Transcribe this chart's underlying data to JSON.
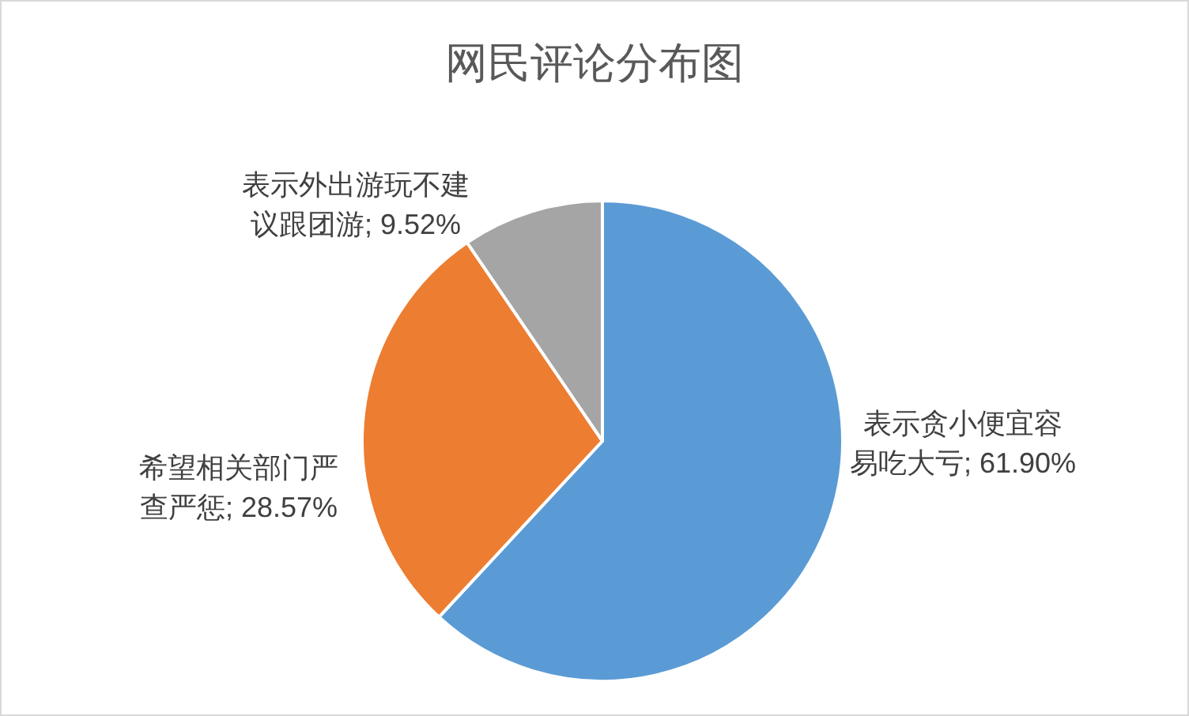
{
  "chart_data": {
    "type": "pie",
    "title": "网民评论分布图",
    "categories": [
      "表示贪小便宜容易吃大亏",
      "希望相关部门严查严惩",
      "表示外出游玩不建议跟团游"
    ],
    "values": [
      61.9,
      28.57,
      9.52
    ],
    "colors": [
      "#5b9bd5",
      "#ed7d31",
      "#a5a5a5"
    ],
    "value_labels": [
      "61.90%",
      "28.57%",
      "9.52%"
    ]
  }
}
